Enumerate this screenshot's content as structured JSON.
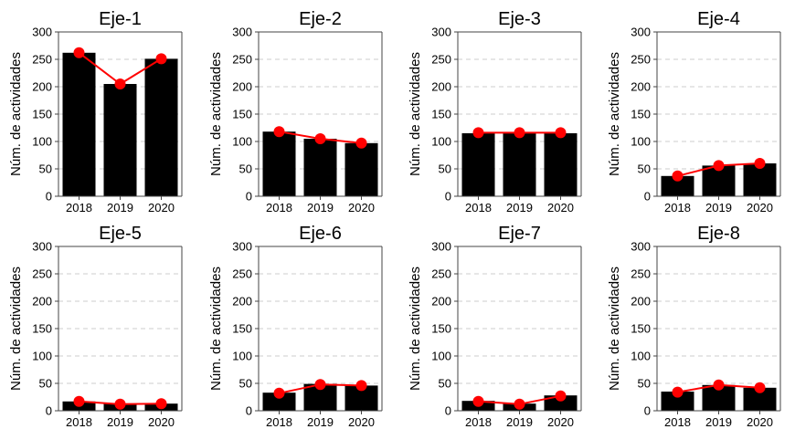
{
  "chart_data": [
    {
      "type": "bar",
      "title": "Eje-1",
      "categories": [
        "2018",
        "2019",
        "2020"
      ],
      "values": [
        262,
        205,
        251
      ],
      "line_values": [
        262,
        205,
        251
      ],
      "ylabel": "Núm. de actividades",
      "yticks": [
        0,
        50,
        100,
        150,
        200,
        250,
        300
      ],
      "ylim": [
        0,
        300
      ],
      "grid": "horizontal dashed"
    },
    {
      "type": "bar",
      "title": "Eje-2",
      "categories": [
        "2018",
        "2019",
        "2020"
      ],
      "values": [
        118,
        105,
        97
      ],
      "line_values": [
        118,
        105,
        97
      ],
      "ylabel": "Núm. de actividades",
      "yticks": [
        0,
        50,
        100,
        150,
        200,
        250,
        300
      ],
      "ylim": [
        0,
        300
      ],
      "grid": "horizontal dashed"
    },
    {
      "type": "bar",
      "title": "Eje-3",
      "categories": [
        "2018",
        "2019",
        "2020"
      ],
      "values": [
        115,
        115,
        115
      ],
      "line_values": [
        116,
        116,
        116
      ],
      "ylabel": "Núm. de actividades",
      "yticks": [
        0,
        50,
        100,
        150,
        200,
        250,
        300
      ],
      "ylim": [
        0,
        300
      ],
      "grid": "horizontal dashed"
    },
    {
      "type": "bar",
      "title": "Eje-4",
      "categories": [
        "2018",
        "2019",
        "2020"
      ],
      "values": [
        37,
        56,
        60
      ],
      "line_values": [
        37,
        56,
        60
      ],
      "ylabel": "Núm. de actividades",
      "yticks": [
        0,
        50,
        100,
        150,
        200,
        250,
        300
      ],
      "ylim": [
        0,
        300
      ],
      "grid": "horizontal dashed"
    },
    {
      "type": "bar",
      "title": "Eje-5",
      "categories": [
        "2018",
        "2019",
        "2020"
      ],
      "values": [
        17,
        13,
        13
      ],
      "line_values": [
        17,
        12,
        13
      ],
      "ylabel": "Núm. de actividades",
      "yticks": [
        0,
        50,
        100,
        150,
        200,
        250,
        300
      ],
      "ylim": [
        0,
        300
      ],
      "grid": "horizontal dashed"
    },
    {
      "type": "bar",
      "title": "Eje-6",
      "categories": [
        "2018",
        "2019",
        "2020"
      ],
      "values": [
        33,
        49,
        46
      ],
      "line_values": [
        32,
        48,
        46
      ],
      "ylabel": "Núm. de actividades",
      "yticks": [
        0,
        50,
        100,
        150,
        200,
        250,
        300
      ],
      "ylim": [
        0,
        300
      ],
      "grid": "horizontal dashed"
    },
    {
      "type": "bar",
      "title": "Eje-7",
      "categories": [
        "2018",
        "2019",
        "2020"
      ],
      "values": [
        18,
        13,
        28
      ],
      "line_values": [
        17,
        12,
        27
      ],
      "ylabel": "Núm. de actividades",
      "yticks": [
        0,
        50,
        100,
        150,
        200,
        250,
        300
      ],
      "ylim": [
        0,
        300
      ],
      "grid": "horizontal dashed"
    },
    {
      "type": "bar",
      "title": "Eje-8",
      "categories": [
        "2018",
        "2019",
        "2020"
      ],
      "values": [
        35,
        47,
        42
      ],
      "line_values": [
        34,
        47,
        42
      ],
      "ylabel": "Núm. de actividades",
      "yticks": [
        0,
        50,
        100,
        150,
        200,
        250,
        300
      ],
      "ylim": [
        0,
        300
      ],
      "grid": "horizontal dashed"
    }
  ],
  "style": {
    "bar_color": "#000000",
    "line_color": "#ff0000",
    "grid_color": "#cccccc",
    "axis_color": "#444444"
  }
}
